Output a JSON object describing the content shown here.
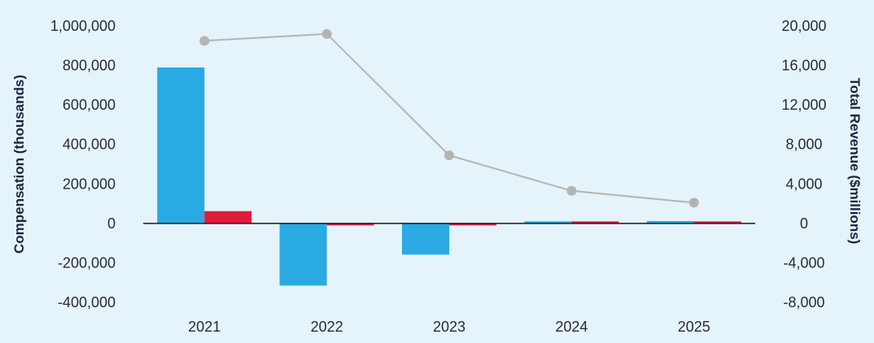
{
  "chart_data": {
    "type": "bar",
    "categories": [
      "2021",
      "2022",
      "2023",
      "2024",
      "2025"
    ],
    "series": [
      {
        "values": [
          790000,
          -315000,
          -158000,
          4000,
          12000
        ],
        "color": "#2aaae2",
        "type": "bar",
        "axis": "left"
      },
      {
        "values": [
          62000,
          -8000,
          -6000,
          3000,
          4000
        ],
        "color": "#e21b3c",
        "type": "bar",
        "axis": "left"
      },
      {
        "values": [
          18500,
          19200,
          6900,
          3300,
          2100
        ],
        "color": "#b4b4b4",
        "type": "line",
        "axis": "right"
      }
    ],
    "ylabel": "Compensation (thousands)",
    "y2label": "Total Revenue ($millions)",
    "ylim": [
      -400000,
      1000000
    ],
    "y2lim": [
      -8000,
      20000
    ],
    "yticks": [
      "1,000,000",
      "800,000",
      "600,000",
      "400,000",
      "200,000",
      "0",
      "-200,000",
      "-400,000"
    ],
    "y2ticks": [
      "20,000",
      "16,000",
      "12,000",
      "8,000",
      "4,000",
      "0",
      "-4,000",
      "-8,000"
    ],
    "grid": false,
    "legend": "none"
  }
}
